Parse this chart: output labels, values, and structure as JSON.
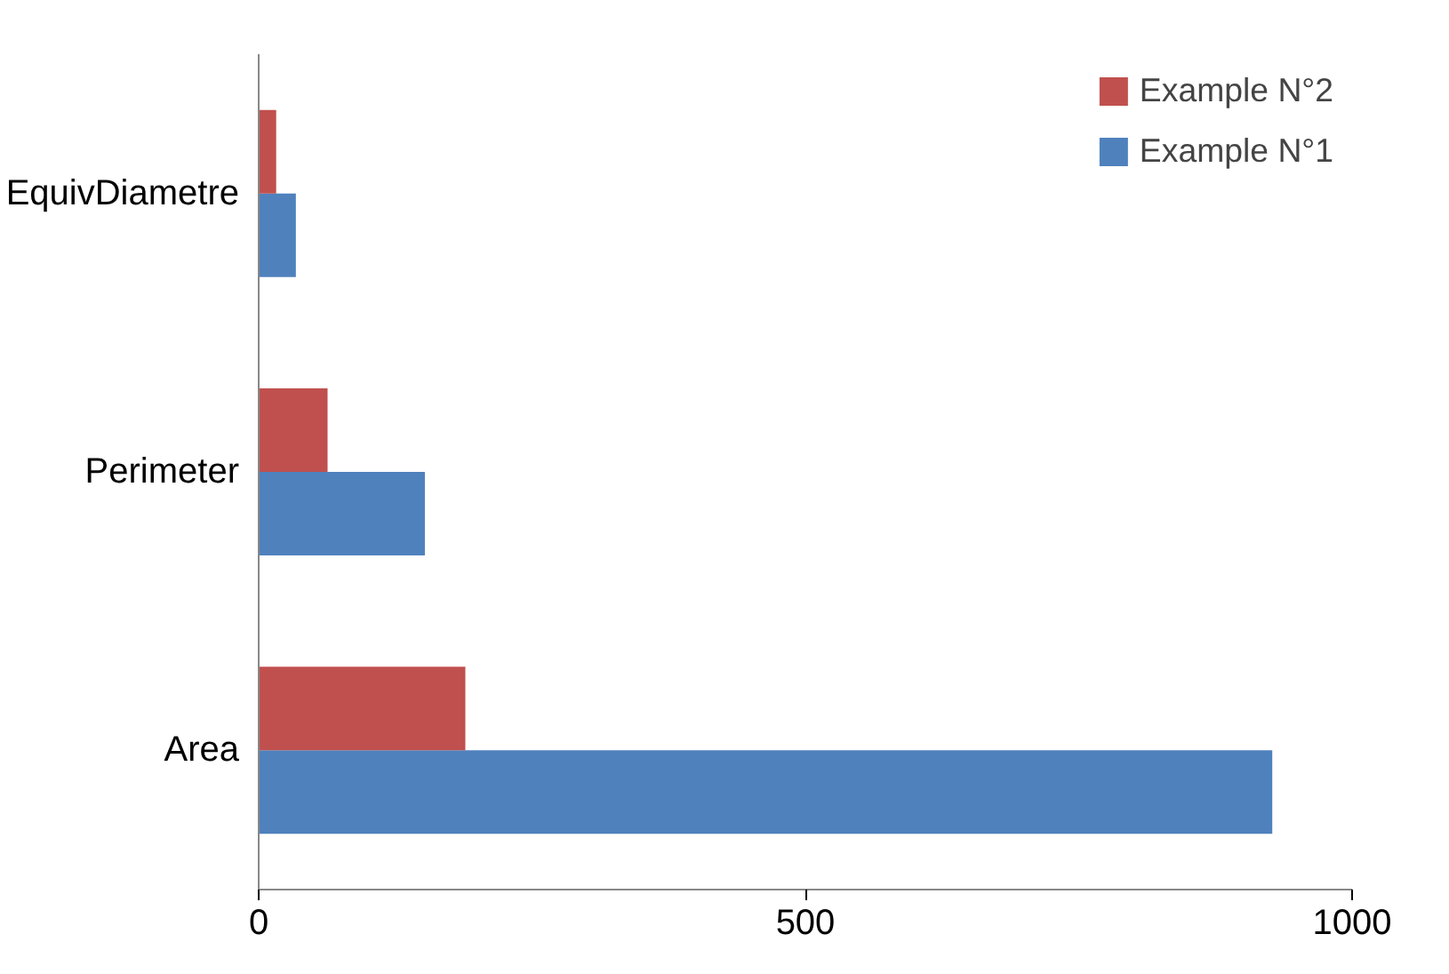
{
  "chart_data": {
    "type": "bar",
    "orientation": "horizontal",
    "categories": [
      "EquivDiametre",
      "Perimeter",
      "Area"
    ],
    "series": [
      {
        "name": "Example N°1",
        "color": "#4f81bd",
        "values": [
          34,
          152,
          927
        ]
      },
      {
        "name": "Example N°2",
        "color": "#c0504d",
        "values": [
          16,
          63,
          189
        ]
      }
    ],
    "xlim": [
      0,
      1000
    ],
    "xticks": [
      0,
      500,
      1000
    ],
    "grid": false,
    "legend": "top right"
  }
}
